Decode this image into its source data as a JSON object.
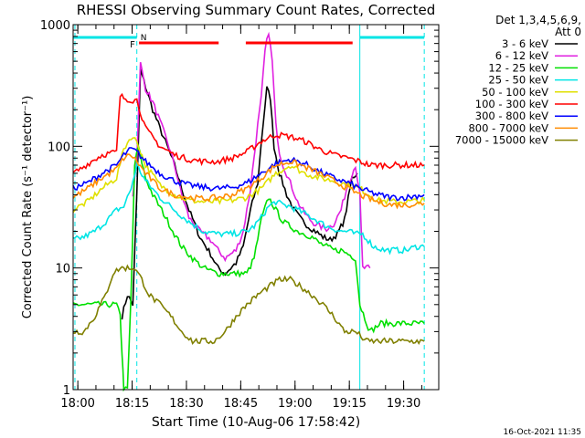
{
  "chart_data": {
    "type": "line",
    "title": "RHESSI Observing Summary Count Rates, Corrected",
    "xlabel": "Start Time (10-Aug-06 17:58:42)",
    "ylabel": "Corrected Count Rate (s⁻¹ detector⁻¹)",
    "yscale": "log",
    "ylim": [
      1,
      1000
    ],
    "x_unit": "minutes after 17:58:42",
    "xlim": [
      0,
      101
    ],
    "x_tick_labels": [
      "18:00",
      "18:15",
      "18:30",
      "18:45",
      "19:00",
      "19:15",
      "19:30"
    ],
    "x_tick_values": [
      1.3,
      16.3,
      31.3,
      46.3,
      61.3,
      76.3,
      91.3
    ],
    "y_tick_labels": [
      "1",
      "10",
      "100",
      "1000"
    ],
    "y_tick_values": [
      1,
      10,
      100,
      1000
    ],
    "legend_position": "right",
    "legend_header": [
      "Det 1,3,4,5,6,9,",
      "Att 0"
    ],
    "footer_date": "16-Oct-2021 11:35",
    "flags": {
      "night_label": "N",
      "flare_label": "F",
      "night_intervals": [
        [
          0,
          17.6
        ],
        [
          79.2,
          97
        ]
      ],
      "flare_intervals": [
        [
          18.2,
          40.2
        ],
        [
          47.7,
          77.2
        ]
      ],
      "night_color": "#00e5e5",
      "flare_color": "#ff0000"
    },
    "verticals": [
      {
        "x": 0.5,
        "style": "dashed",
        "color": "#00e5e5"
      },
      {
        "x": 17.6,
        "style": "dashed",
        "color": "#00e5e5"
      },
      {
        "x": 79.2,
        "style": "solid",
        "color": "#00e5e5"
      },
      {
        "x": 97,
        "style": "dashed",
        "color": "#00e5e5"
      }
    ],
    "series": [
      {
        "name": "3 - 6 keV",
        "color": "#000000",
        "x": [
          13.5,
          15,
          16.5,
          17.6,
          18.6,
          20,
          22,
          24,
          26,
          28,
          30,
          32,
          35,
          38,
          40,
          42,
          45,
          47,
          49,
          51,
          52,
          53.5,
          54.5,
          55.5,
          57,
          59,
          61,
          63,
          65,
          67,
          69,
          71,
          73,
          75,
          77,
          78.5
        ],
        "y": [
          4,
          6,
          5,
          40,
          420,
          310,
          200,
          140,
          100,
          70,
          45,
          30,
          18,
          13,
          10,
          9,
          11,
          15,
          30,
          50,
          110,
          300,
          250,
          100,
          60,
          40,
          30,
          25,
          22,
          20,
          18,
          17,
          19,
          25,
          55,
          60
        ]
      },
      {
        "name": "6 - 12 keV",
        "color": "#e020e0",
        "x": [
          16.5,
          17.6,
          18.6,
          20,
          22,
          24,
          26,
          28,
          30,
          32,
          35,
          38,
          40,
          42,
          45,
          47,
          49,
          51,
          52,
          53,
          54,
          55,
          56,
          57,
          58,
          60,
          62,
          64,
          66,
          68,
          70,
          72,
          74,
          76,
          78,
          79.2,
          80,
          82
        ],
        "y": [
          40,
          80,
          480,
          300,
          230,
          160,
          110,
          70,
          40,
          26,
          20,
          17,
          14,
          12,
          14,
          20,
          45,
          150,
          250,
          600,
          880,
          500,
          150,
          90,
          70,
          50,
          35,
          28,
          24,
          22,
          21,
          23,
          30,
          50,
          70,
          40,
          10,
          10
        ]
      },
      {
        "name": "12 - 25 keV",
        "color": "#00e000",
        "x": [
          0,
          5,
          10,
          12,
          13,
          13.5,
          14,
          15,
          16,
          17,
          18,
          20,
          22,
          25,
          28,
          30,
          33,
          36,
          40,
          44,
          48,
          50,
          52,
          54,
          56,
          58,
          60,
          62,
          64,
          66,
          68,
          70,
          72,
          74,
          76,
          78,
          79.2,
          82,
          85,
          90,
          95,
          97
        ],
        "y": [
          5,
          5,
          5,
          5,
          4,
          2,
          1,
          1,
          6,
          70,
          100,
          55,
          40,
          28,
          19,
          15,
          12,
          10,
          9,
          9,
          9,
          12,
          25,
          38,
          30,
          24,
          22,
          20,
          19,
          18,
          16,
          15,
          14,
          14,
          13,
          12,
          5,
          3,
          3.5,
          3.5,
          3.5,
          3.5
        ]
      },
      {
        "name": "25 - 50 keV",
        "color": "#00e5e5",
        "x": [
          0,
          3,
          6,
          9,
          12,
          14,
          16,
          17.6,
          20,
          24,
          28,
          32,
          36,
          40,
          44,
          48,
          50,
          52,
          54,
          56,
          58,
          60,
          62,
          64,
          66,
          68,
          70,
          72,
          74,
          76,
          78,
          80,
          83,
          86,
          89,
          92,
          95,
          97
        ],
        "y": [
          17,
          18,
          20,
          24,
          30,
          32,
          45,
          70,
          52,
          38,
          30,
          24,
          20,
          19,
          19,
          20,
          22,
          26,
          32,
          35,
          33,
          32,
          30,
          28,
          26,
          24,
          22,
          21,
          20,
          20,
          19,
          19,
          15,
          14,
          14,
          14,
          15,
          15
        ]
      },
      {
        "name": "50 - 100 keV",
        "color": "#e0e000",
        "x": [
          0,
          4,
          8,
          12,
          14,
          16,
          17.6,
          20,
          24,
          28,
          32,
          36,
          40,
          44,
          48,
          52,
          56,
          60,
          64,
          68,
          72,
          76,
          79.2,
          84,
          88,
          92,
          97
        ],
        "y": [
          30,
          35,
          45,
          55,
          95,
          120,
          110,
          70,
          48,
          40,
          36,
          35,
          35,
          36,
          38,
          45,
          60,
          70,
          60,
          55,
          52,
          48,
          45,
          36,
          35,
          35,
          36
        ]
      },
      {
        "name": "100 - 300 keV",
        "color": "#ff0000",
        "x": [
          0,
          2,
          5,
          8,
          12,
          13,
          14,
          16,
          17.6,
          20,
          24,
          28,
          32,
          36,
          40,
          44,
          48,
          52,
          56,
          60,
          64,
          68,
          72,
          76,
          79.2,
          82,
          86,
          90,
          94,
          97
        ],
        "y": [
          60,
          65,
          75,
          85,
          90,
          260,
          250,
          240,
          240,
          140,
          100,
          85,
          78,
          75,
          75,
          80,
          90,
          110,
          125,
          120,
          110,
          95,
          85,
          80,
          75,
          70,
          70,
          70,
          70,
          70
        ]
      },
      {
        "name": "300 - 800 keV",
        "color": "#0000ff",
        "x": [
          0,
          4,
          8,
          12,
          14,
          16,
          17.6,
          20,
          24,
          28,
          32,
          36,
          40,
          44,
          48,
          52,
          56,
          60,
          64,
          68,
          72,
          76,
          79.2,
          84,
          88,
          92,
          97
        ],
        "y": [
          45,
          50,
          60,
          70,
          85,
          95,
          90,
          75,
          60,
          52,
          48,
          46,
          45,
          46,
          50,
          60,
          72,
          78,
          72,
          62,
          55,
          50,
          45,
          40,
          38,
          38,
          40
        ]
      },
      {
        "name": "800 - 7000 keV",
        "color": "#ff8c00",
        "x": [
          0,
          4,
          8,
          12,
          14,
          16,
          17.6,
          20,
          24,
          28,
          32,
          36,
          40,
          44,
          48,
          52,
          56,
          60,
          64,
          68,
          72,
          76,
          79.2,
          84,
          88,
          92,
          97
        ],
        "y": [
          38,
          45,
          55,
          65,
          80,
          85,
          75,
          60,
          45,
          40,
          38,
          37,
          38,
          40,
          45,
          55,
          70,
          75,
          68,
          60,
          52,
          45,
          40,
          35,
          33,
          33,
          34
        ]
      },
      {
        "name": "7000 - 15000 keV",
        "color": "#808000",
        "x": [
          0,
          3,
          6,
          9,
          11,
          13,
          15,
          17,
          19,
          21,
          24,
          27,
          30,
          33,
          36,
          39,
          42,
          45,
          48,
          51,
          54,
          57,
          60,
          63,
          66,
          69,
          72,
          75,
          78,
          81,
          84,
          87,
          90,
          93,
          97
        ],
        "y": [
          3,
          3,
          4,
          6,
          9,
          10,
          10,
          10,
          8,
          6,
          5,
          4,
          3,
          2.5,
          2.5,
          2.5,
          3,
          4,
          5,
          6,
          7,
          8,
          8,
          7,
          6,
          5,
          4,
          3,
          3,
          2.5,
          2.5,
          2.5,
          2.5,
          2.5,
          2.5
        ]
      }
    ]
  }
}
